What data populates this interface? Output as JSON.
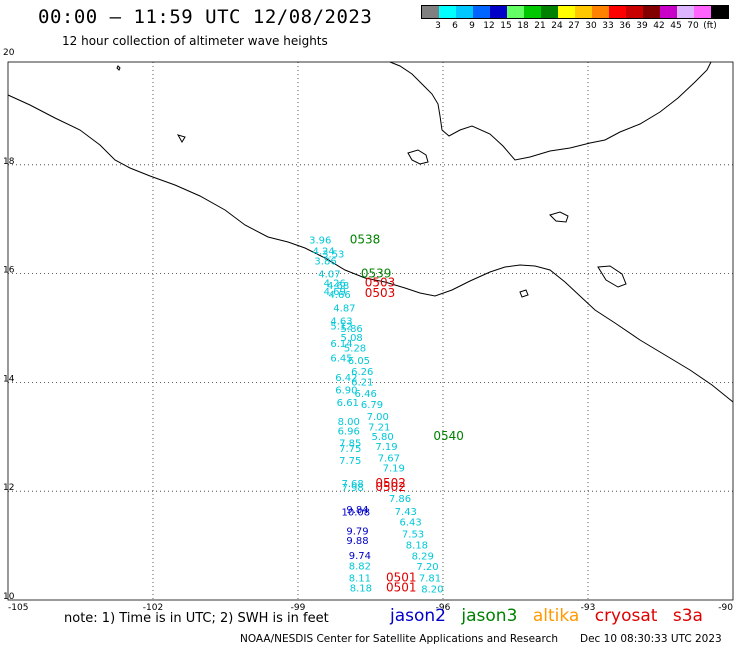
{
  "header": {
    "title": "00:00 – 11:59 UTC 12/08/2023",
    "subtitle": "12 hour collection of altimeter wave heights"
  },
  "scale": {
    "labels": [
      "3",
      "6",
      "9",
      "12",
      "15",
      "18",
      "21",
      "24",
      "27",
      "30",
      "33",
      "36",
      "39",
      "42",
      "45",
      "70",
      "(ft)"
    ],
    "colors": [
      "#808080",
      "#00ffff",
      "#00c8ff",
      "#0064ff",
      "#0000c8",
      "#64ff64",
      "#00c800",
      "#008200",
      "#ffff00",
      "#ffc800",
      "#ff8200",
      "#ff0000",
      "#c80000",
      "#820000",
      "#c800c8",
      "#dcb4ff",
      "#ff64ff",
      "#000000"
    ]
  },
  "axes": {
    "lat_labels": [
      "20",
      "18",
      "16",
      "14",
      "12",
      "10"
    ],
    "lon_labels": [
      "-105",
      "-102",
      "-99",
      "-96",
      "-93",
      "-90"
    ]
  },
  "colors": {
    "jason2": "#0000c8",
    "jason3": "#008200",
    "altika": "#ff9900",
    "cryosat": "#e00000",
    "s3a": "#e00000",
    "cyan": "#00c8d8"
  },
  "obs_labels": [
    {
      "text": "3.96",
      "lon": -98.77,
      "lat": 16.55,
      "c": "cyan"
    },
    {
      "text": "0538",
      "lon": -97.93,
      "lat": 16.55,
      "c": "jason3"
    },
    {
      "text": "4.24",
      "lon": -98.7,
      "lat": 16.35,
      "c": "cyan"
    },
    {
      "text": "3.53",
      "lon": -98.5,
      "lat": 16.3,
      "c": "cyan"
    },
    {
      "text": "3.86",
      "lon": -98.66,
      "lat": 16.17,
      "c": "cyan"
    },
    {
      "text": "4.07",
      "lon": -98.58,
      "lat": 15.93,
      "c": "cyan"
    },
    {
      "text": "0539",
      "lon": -97.7,
      "lat": 15.93,
      "c": "jason3"
    },
    {
      "text": "4.26",
      "lon": -98.47,
      "lat": 15.76,
      "c": "cyan"
    },
    {
      "text": "4.68",
      "lon": -98.4,
      "lat": 15.72,
      "c": "cyan"
    },
    {
      "text": "0503",
      "lon": -97.62,
      "lat": 15.76,
      "c": "cryosat"
    },
    {
      "text": "4.69",
      "lon": -98.47,
      "lat": 15.61,
      "c": "cyan"
    },
    {
      "text": "4.66",
      "lon": -98.37,
      "lat": 15.55,
      "c": "cyan"
    },
    {
      "text": "0503",
      "lon": -97.62,
      "lat": 15.57,
      "c": "cryosat"
    },
    {
      "text": "4.87",
      "lon": -98.27,
      "lat": 15.3,
      "c": "cyan"
    },
    {
      "text": "4.63",
      "lon": -98.33,
      "lat": 15.06,
      "c": "cyan"
    },
    {
      "text": "5.12",
      "lon": -98.33,
      "lat": 14.97,
      "c": "cyan"
    },
    {
      "text": "5.86",
      "lon": -98.12,
      "lat": 14.93,
      "c": "cyan"
    },
    {
      "text": "5.08",
      "lon": -98.12,
      "lat": 14.76,
      "c": "cyan"
    },
    {
      "text": "6.14",
      "lon": -98.33,
      "lat": 14.65,
      "c": "cyan"
    },
    {
      "text": "5.28",
      "lon": -98.05,
      "lat": 14.57,
      "c": "cyan"
    },
    {
      "text": "6.45",
      "lon": -98.33,
      "lat": 14.38,
      "c": "cyan"
    },
    {
      "text": "6.05",
      "lon": -97.97,
      "lat": 14.34,
      "c": "cyan"
    },
    {
      "text": "6.26",
      "lon": -97.9,
      "lat": 14.14,
      "c": "cyan"
    },
    {
      "text": "6.42",
      "lon": -98.23,
      "lat": 14.03,
      "c": "cyan"
    },
    {
      "text": "6.21",
      "lon": -97.9,
      "lat": 13.94,
      "c": "cyan"
    },
    {
      "text": "6.90",
      "lon": -98.23,
      "lat": 13.8,
      "c": "cyan"
    },
    {
      "text": "6.46",
      "lon": -97.83,
      "lat": 13.73,
      "c": "cyan"
    },
    {
      "text": "6.61",
      "lon": -98.2,
      "lat": 13.57,
      "c": "cyan"
    },
    {
      "text": "6.79",
      "lon": -97.7,
      "lat": 13.53,
      "c": "cyan"
    },
    {
      "text": "7.00",
      "lon": -97.58,
      "lat": 13.31,
      "c": "cyan"
    },
    {
      "text": "8.00",
      "lon": -98.18,
      "lat": 13.22,
      "c": "cyan"
    },
    {
      "text": "7.21",
      "lon": -97.55,
      "lat": 13.12,
      "c": "cyan"
    },
    {
      "text": "6.96",
      "lon": -98.18,
      "lat": 13.04,
      "c": "cyan"
    },
    {
      "text": "5.80",
      "lon": -97.48,
      "lat": 12.94,
      "c": "cyan"
    },
    {
      "text": "0540",
      "lon": -96.2,
      "lat": 12.94,
      "c": "jason3"
    },
    {
      "text": "7.85",
      "lon": -98.15,
      "lat": 12.82,
      "c": "cyan"
    },
    {
      "text": "7.19",
      "lon": -97.4,
      "lat": 12.76,
      "c": "cyan"
    },
    {
      "text": "7.75",
      "lon": -98.15,
      "lat": 12.72,
      "c": "cyan"
    },
    {
      "text": "7.67",
      "lon": -97.35,
      "lat": 12.55,
      "c": "cyan"
    },
    {
      "text": "7.75",
      "lon": -98.15,
      "lat": 12.5,
      "c": "cyan"
    },
    {
      "text": "7.19",
      "lon": -97.25,
      "lat": 12.36,
      "c": "cyan"
    },
    {
      "text": "7.68",
      "lon": -98.1,
      "lat": 12.08,
      "c": "cyan"
    },
    {
      "text": "0502",
      "lon": -97.4,
      "lat": 12.08,
      "c": "cryosat"
    },
    {
      "text": "7.98",
      "lon": -98.1,
      "lat": 12.0,
      "c": "cyan"
    },
    {
      "text": "0502",
      "lon": -97.4,
      "lat": 12.0,
      "c": "cryosat"
    },
    {
      "text": "7.86",
      "lon": -97.12,
      "lat": 11.8,
      "c": "cyan"
    },
    {
      "text": "9.84",
      "lon": -98.0,
      "lat": 11.6,
      "c": "jason2"
    },
    {
      "text": "10.08",
      "lon": -98.1,
      "lat": 11.55,
      "c": "jason2"
    },
    {
      "text": "7.43",
      "lon": -97.0,
      "lat": 11.56,
      "c": "cyan"
    },
    {
      "text": "6.43",
      "lon": -96.9,
      "lat": 11.37,
      "c": "cyan"
    },
    {
      "text": "9.79",
      "lon": -98.0,
      "lat": 11.2,
      "c": "jason2"
    },
    {
      "text": "7.53",
      "lon": -96.85,
      "lat": 11.15,
      "c": "cyan"
    },
    {
      "text": "9.88",
      "lon": -98.0,
      "lat": 11.03,
      "c": "jason2"
    },
    {
      "text": "8.18",
      "lon": -96.77,
      "lat": 10.95,
      "c": "cyan"
    },
    {
      "text": "9.74",
      "lon": -97.95,
      "lat": 10.75,
      "c": "jason2"
    },
    {
      "text": "8.29",
      "lon": -96.65,
      "lat": 10.74,
      "c": "cyan"
    },
    {
      "text": "8.82",
      "lon": -97.95,
      "lat": 10.56,
      "c": "cyan"
    },
    {
      "text": "7.20",
      "lon": -96.55,
      "lat": 10.55,
      "c": "cyan"
    },
    {
      "text": "8.11",
      "lon": -97.95,
      "lat": 10.34,
      "c": "cyan"
    },
    {
      "text": "0501",
      "lon": -97.18,
      "lat": 10.34,
      "c": "cryosat"
    },
    {
      "text": "7.81",
      "lon": -96.5,
      "lat": 10.34,
      "c": "cyan"
    },
    {
      "text": "8.18",
      "lon": -97.93,
      "lat": 10.16,
      "c": "cyan"
    },
    {
      "text": "0501",
      "lon": -97.18,
      "lat": 10.16,
      "c": "cryosat"
    },
    {
      "text": "8.20",
      "lon": -96.45,
      "lat": 10.14,
      "c": "cyan"
    }
  ],
  "footer": {
    "note": "note: 1) Time is in UTC; 2) SWH is in feet",
    "legend": {
      "jason2": "jason2",
      "jason3": "jason3",
      "altika": "altika",
      "cryosat": "cryosat",
      "s3a": "s3a"
    },
    "credit": "NOAA/NESDIS Center for Satellite Applications and Research",
    "timestamp": "Dec 10 08:30:33 UTC 2023"
  }
}
